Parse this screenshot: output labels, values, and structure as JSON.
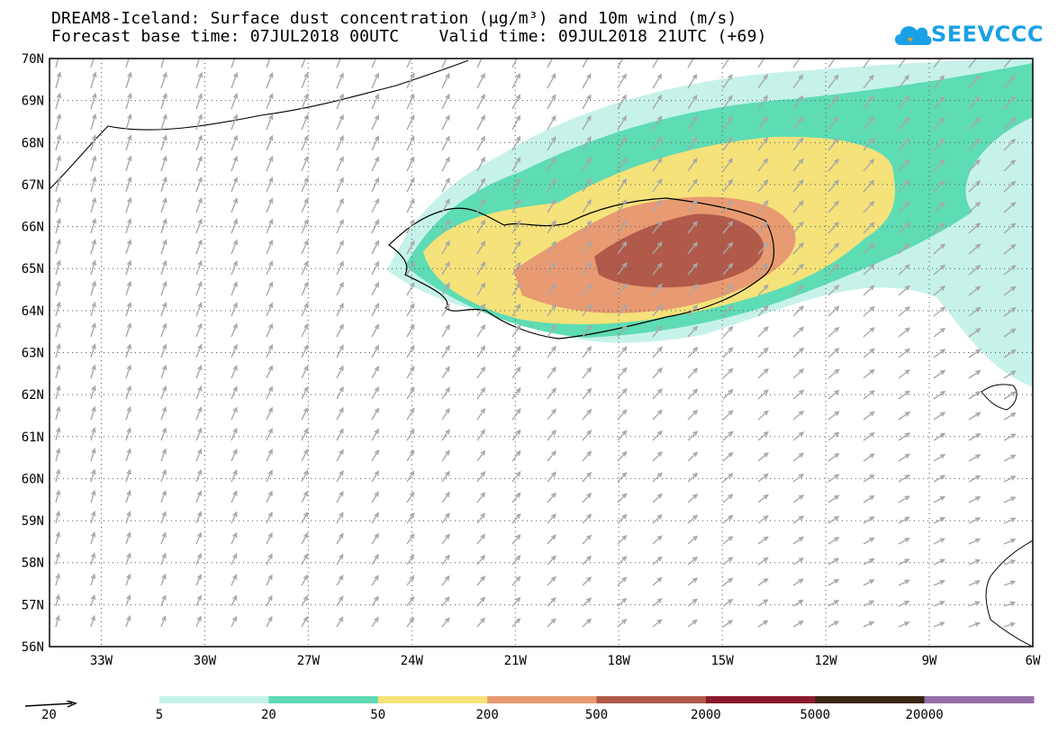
{
  "title": {
    "line1": "DREAM8-Iceland: Surface dust concentration (μg/m³) and 10m wind (m/s)",
    "line2": "Forecast base time: 07JUL2018 00UTC    Valid time: 09JUL2018 21UTC (+69)"
  },
  "logo": {
    "text": "SEEVCCC",
    "icon": "cloud-icon",
    "color": "#1aa0e6"
  },
  "map": {
    "lat_labels": [
      "70N",
      "69N",
      "68N",
      "67N",
      "66N",
      "65N",
      "64N",
      "63N",
      "62N",
      "61N",
      "60N",
      "59N",
      "58N",
      "57N",
      "56N"
    ],
    "lon_labels": [
      "33W",
      "30W",
      "27W",
      "24W",
      "21W",
      "18W",
      "15W",
      "12W",
      "9W",
      "6W"
    ],
    "lat_range": [
      56,
      70
    ],
    "lon_range": [
      -34.5,
      -6
    ],
    "grid": "dotted",
    "wind_arrow_color": "#a8a8a8",
    "coast_color": "#000000"
  },
  "legend": {
    "ref_vector_label": "20",
    "colorbar_labels": [
      "5",
      "20",
      "50",
      "200",
      "500",
      "2000",
      "5000",
      "20000"
    ],
    "colors": [
      "#c6f2ea",
      "#5edcb4",
      "#f5e27a",
      "#e89a72",
      "#b25a4a",
      "#8a1a2c",
      "#3a2414",
      "#946fa8"
    ]
  }
}
